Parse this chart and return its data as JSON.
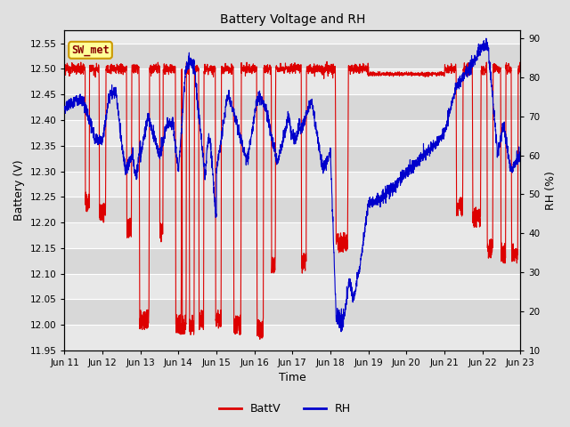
{
  "title": "Battery Voltage and RH",
  "xlabel": "Time",
  "ylabel_left": "Battery (V)",
  "ylabel_right": "RH (%)",
  "annotation_text": "SW_met",
  "annotation_bg": "#ffff99",
  "annotation_border": "#cc9900",
  "left_ylim": [
    11.95,
    12.575
  ],
  "right_ylim": [
    10,
    92
  ],
  "left_yticks": [
    11.95,
    12.0,
    12.05,
    12.1,
    12.15,
    12.2,
    12.25,
    12.3,
    12.35,
    12.4,
    12.45,
    12.5,
    12.55
  ],
  "right_yticks": [
    10,
    20,
    30,
    40,
    50,
    60,
    70,
    80,
    90
  ],
  "x_tick_labels": [
    "Jun 11",
    "Jun 12",
    "Jun 13",
    "Jun 14",
    "Jun 15",
    "Jun 16",
    "Jun 17",
    "Jun 18",
    "Jun 19",
    "Jun 20",
    "Jun 21",
    "Jun 22",
    "Jun 23"
  ],
  "batt_color": "#dd0000",
  "rh_color": "#0000cc",
  "legend_entries": [
    "BattV",
    "RH"
  ],
  "bg_color": "#e0e0e0",
  "plot_bg_color_light": "#e8e8e8",
  "plot_bg_color_dark": "#d8d8d8",
  "grid_color": "#ffffff",
  "band_colors": [
    "#e8e8e8",
    "#d8d8d8"
  ]
}
